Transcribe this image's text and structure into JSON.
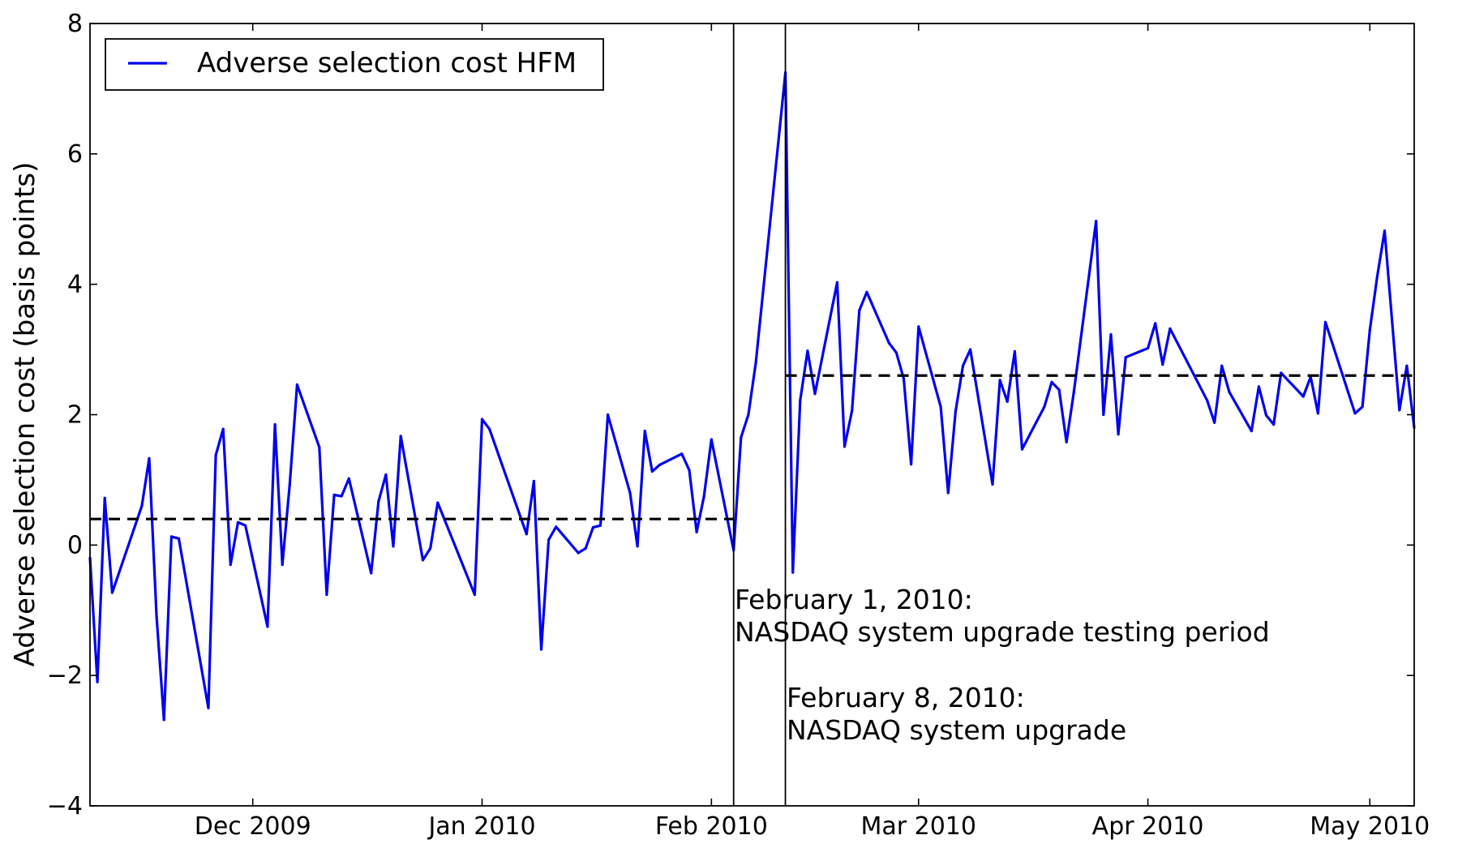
{
  "chart_data": {
    "type": "line",
    "title": "",
    "xlabel": "",
    "ylabel": "Adverse selection cost (basis points)",
    "ylim": [
      -4,
      8
    ],
    "xlim": [
      "2009-11-09",
      "2010-05-07"
    ],
    "yticks": [
      -4,
      -2,
      0,
      2,
      4,
      6,
      8
    ],
    "ytick_labels": [
      "−4",
      "−2",
      "0",
      "2",
      "4",
      "6",
      "8"
    ],
    "xticks": [
      {
        "date": "2009-12-01",
        "label": "Dec 2009"
      },
      {
        "date": "2010-01-01",
        "label": "Jan 2010"
      },
      {
        "date": "2010-02-01",
        "label": "Feb 2010"
      },
      {
        "date": "2010-03-01",
        "label": "Mar 2010"
      },
      {
        "date": "2010-04-01",
        "label": "Apr 2010"
      },
      {
        "date": "2010-05-01",
        "label": "May 2010"
      }
    ],
    "grid": false,
    "legend_position": "top-left",
    "series": [
      {
        "name": "Adverse selection cost HFM",
        "color": "#0000ee",
        "points": [
          [
            "2009-11-09",
            -0.2
          ],
          [
            "2009-11-10",
            -2.1
          ],
          [
            "2009-11-11",
            0.72
          ],
          [
            "2009-11-12",
            -0.73
          ],
          [
            "2009-11-16",
            0.6
          ],
          [
            "2009-11-17",
            1.33
          ],
          [
            "2009-11-18",
            -1.1
          ],
          [
            "2009-11-19",
            -2.68
          ],
          [
            "2009-11-20",
            0.13
          ],
          [
            "2009-11-21",
            0.1
          ],
          [
            "2009-11-25",
            -2.5
          ],
          [
            "2009-11-26",
            1.38
          ],
          [
            "2009-11-27",
            1.78
          ],
          [
            "2009-11-28",
            -0.3
          ],
          [
            "2009-11-29",
            0.35
          ],
          [
            "2009-11-30",
            0.3
          ],
          [
            "2009-12-03",
            -1.25
          ],
          [
            "2009-12-04",
            1.85
          ],
          [
            "2009-12-05",
            -0.3
          ],
          [
            "2009-12-06",
            0.93
          ],
          [
            "2009-12-07",
            2.46
          ],
          [
            "2009-12-10",
            1.5
          ],
          [
            "2009-12-11",
            -0.76
          ],
          [
            "2009-12-12",
            0.77
          ],
          [
            "2009-12-13",
            0.75
          ],
          [
            "2009-12-14",
            1.02
          ],
          [
            "2009-12-17",
            -0.43
          ],
          [
            "2009-12-18",
            0.67
          ],
          [
            "2009-12-19",
            1.08
          ],
          [
            "2009-12-20",
            -0.02
          ],
          [
            "2009-12-21",
            1.67
          ],
          [
            "2009-12-24",
            -0.23
          ],
          [
            "2009-12-25",
            -0.05
          ],
          [
            "2009-12-26",
            0.65
          ],
          [
            "2009-12-31",
            -0.76
          ],
          [
            "2010-01-01",
            1.93
          ],
          [
            "2010-01-02",
            1.78
          ],
          [
            "2010-01-07",
            0.17
          ],
          [
            "2010-01-08",
            0.98
          ],
          [
            "2010-01-09",
            -1.6
          ],
          [
            "2010-01-10",
            0.08
          ],
          [
            "2010-01-11",
            0.28
          ],
          [
            "2010-01-14",
            -0.12
          ],
          [
            "2010-01-15",
            -0.05
          ],
          [
            "2010-01-16",
            0.27
          ],
          [
            "2010-01-17",
            0.3
          ],
          [
            "2010-01-18",
            2.0
          ],
          [
            "2010-01-21",
            0.8
          ],
          [
            "2010-01-22",
            -0.02
          ],
          [
            "2010-01-23",
            1.75
          ],
          [
            "2010-01-24",
            1.13
          ],
          [
            "2010-01-25",
            1.23
          ],
          [
            "2010-01-28",
            1.4
          ],
          [
            "2010-01-29",
            1.15
          ],
          [
            "2010-01-30",
            0.2
          ],
          [
            "2010-01-31",
            0.75
          ],
          [
            "2010-02-01",
            1.62
          ],
          [
            "2010-02-04",
            -0.08
          ],
          [
            "2010-02-05",
            1.65
          ],
          [
            "2010-02-06",
            2.0
          ],
          [
            "2010-02-07",
            2.8
          ],
          [
            "2010-02-11",
            7.25
          ],
          [
            "2010-02-12",
            -0.42
          ],
          [
            "2010-02-13",
            2.22
          ],
          [
            "2010-02-14",
            2.98
          ],
          [
            "2010-02-15",
            2.32
          ],
          [
            "2010-02-18",
            4.03
          ],
          [
            "2010-02-19",
            1.51
          ],
          [
            "2010-02-20",
            2.06
          ],
          [
            "2010-02-21",
            3.6
          ],
          [
            "2010-02-22",
            3.88
          ],
          [
            "2010-02-25",
            3.1
          ],
          [
            "2010-02-26",
            2.95
          ],
          [
            "2010-02-27",
            2.55
          ],
          [
            "2010-02-28",
            1.24
          ],
          [
            "2010-03-01",
            3.35
          ],
          [
            "2010-03-04",
            2.12
          ],
          [
            "2010-03-05",
            0.8
          ],
          [
            "2010-03-06",
            2.05
          ],
          [
            "2010-03-07",
            2.75
          ],
          [
            "2010-03-08",
            3.0
          ],
          [
            "2010-03-11",
            0.93
          ],
          [
            "2010-03-12",
            2.53
          ],
          [
            "2010-03-13",
            2.2
          ],
          [
            "2010-03-14",
            2.97
          ],
          [
            "2010-03-15",
            1.47
          ],
          [
            "2010-03-18",
            2.12
          ],
          [
            "2010-03-19",
            2.5
          ],
          [
            "2010-03-20",
            2.38
          ],
          [
            "2010-03-21",
            1.58
          ],
          [
            "2010-03-22",
            2.35
          ],
          [
            "2010-03-25",
            4.97
          ],
          [
            "2010-03-26",
            2.0
          ],
          [
            "2010-03-27",
            3.23
          ],
          [
            "2010-03-28",
            1.7
          ],
          [
            "2010-03-29",
            2.88
          ],
          [
            "2010-04-01",
            3.02
          ],
          [
            "2010-04-02",
            3.4
          ],
          [
            "2010-04-03",
            2.77
          ],
          [
            "2010-04-04",
            3.32
          ],
          [
            "2010-04-09",
            2.22
          ],
          [
            "2010-04-10",
            1.88
          ],
          [
            "2010-04-11",
            2.75
          ],
          [
            "2010-04-12",
            2.35
          ],
          [
            "2010-04-15",
            1.75
          ],
          [
            "2010-04-16",
            2.43
          ],
          [
            "2010-04-17",
            1.99
          ],
          [
            "2010-04-18",
            1.85
          ],
          [
            "2010-04-19",
            2.64
          ],
          [
            "2010-04-22",
            2.28
          ],
          [
            "2010-04-23",
            2.58
          ],
          [
            "2010-04-24",
            2.02
          ],
          [
            "2010-04-25",
            3.42
          ],
          [
            "2010-04-29",
            2.02
          ],
          [
            "2010-04-30",
            2.12
          ],
          [
            "2010-05-01",
            3.3
          ],
          [
            "2010-05-02",
            4.12
          ],
          [
            "2010-05-03",
            4.82
          ],
          [
            "2010-05-05",
            2.07
          ],
          [
            "2010-05-06",
            2.75
          ],
          [
            "2010-05-07",
            1.8
          ]
        ]
      }
    ],
    "reference_lines": [
      {
        "type": "horizontal",
        "style": "dashed",
        "color": "#000000",
        "y": 0.4,
        "from": "2009-11-09",
        "to": "2010-02-04"
      },
      {
        "type": "horizontal",
        "style": "dashed",
        "color": "#000000",
        "y": 2.6,
        "from": "2010-02-11",
        "to": "2010-05-07"
      },
      {
        "type": "vertical",
        "color": "#000000",
        "x": "2010-02-04"
      },
      {
        "type": "vertical",
        "color": "#000000",
        "x": "2010-02-11"
      }
    ],
    "annotations": [
      {
        "line1": "February 1, 2010:",
        "line2": "NASDAQ system upgrade testing period"
      },
      {
        "line1": "February 8, 2010:",
        "line2": "NASDAQ system upgrade"
      }
    ]
  }
}
